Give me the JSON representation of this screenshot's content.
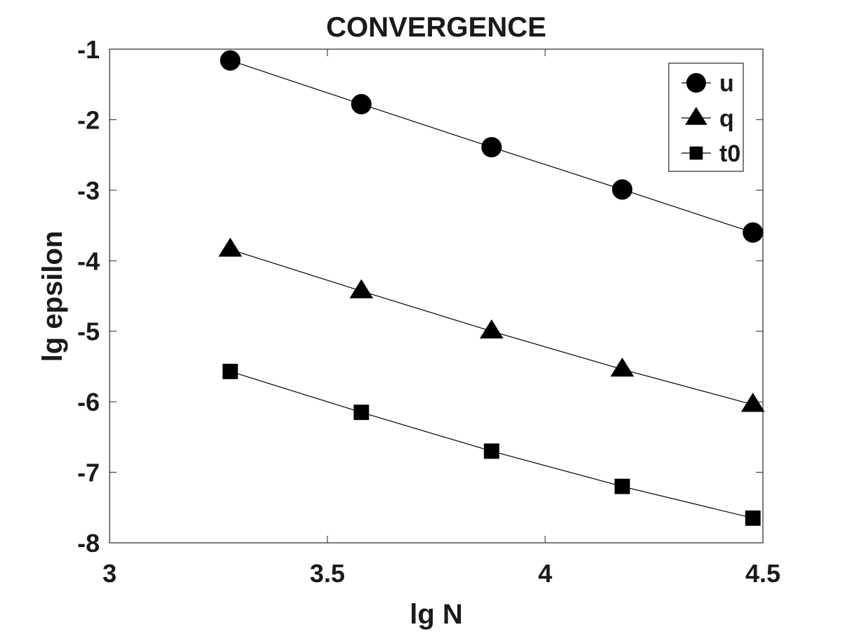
{
  "chart_data": {
    "type": "line",
    "title": "CONVERGENCE",
    "xlabel": "lg N",
    "ylabel": "lg epsilon",
    "xlim": [
      3,
      4.5
    ],
    "ylim": [
      -8,
      -1
    ],
    "xticks": [
      3,
      3.5,
      4,
      4.5
    ],
    "xtick_labels": [
      "3",
      "3.5",
      "4",
      "4.5"
    ],
    "yticks": [
      -8,
      -7,
      -6,
      -5,
      -4,
      -3,
      -2,
      -1
    ],
    "ytick_labels": [
      "-8",
      "-7",
      "-6",
      "-5",
      "-4",
      "-3",
      "-2",
      "-1"
    ],
    "x": [
      3.277,
      3.578,
      3.877,
      4.177,
      4.477
    ],
    "series": [
      {
        "name": "u",
        "marker": "circle",
        "values": [
          -1.16,
          -1.78,
          -2.39,
          -2.99,
          -3.6
        ]
      },
      {
        "name": "q",
        "marker": "triangle",
        "values": [
          -3.84,
          -4.43,
          -5.0,
          -5.54,
          -6.04
        ]
      },
      {
        "name": "t0",
        "marker": "square",
        "values": [
          -5.57,
          -6.15,
          -6.7,
          -7.2,
          -7.65
        ]
      }
    ],
    "grid": false,
    "legend_position": "top-right",
    "line_color": "#000000",
    "marker_color": "#000000"
  }
}
